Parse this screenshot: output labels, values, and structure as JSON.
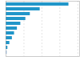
{
  "chart_data": {
    "type": "bar",
    "orientation": "horizontal",
    "categories": [
      null,
      null,
      null,
      null,
      null,
      null,
      null,
      null,
      null,
      null,
      null
    ],
    "values": [
      3500,
      1900,
      1350,
      1100,
      820,
      630,
      470,
      350,
      210,
      100,
      65
    ],
    "colors": [
      "#2196c9",
      "#2196c9",
      "#2196c9",
      "#2196c9",
      "#2196c9",
      "#2196c9",
      "#2196c9",
      "#2196c9",
      "#2196c9",
      "#2196c9",
      "#aac9e8"
    ],
    "xlim": [
      0,
      4100
    ],
    "xticks": [
      1000,
      2000,
      3000,
      4000
    ],
    "grid": true,
    "tick_labels": false
  }
}
